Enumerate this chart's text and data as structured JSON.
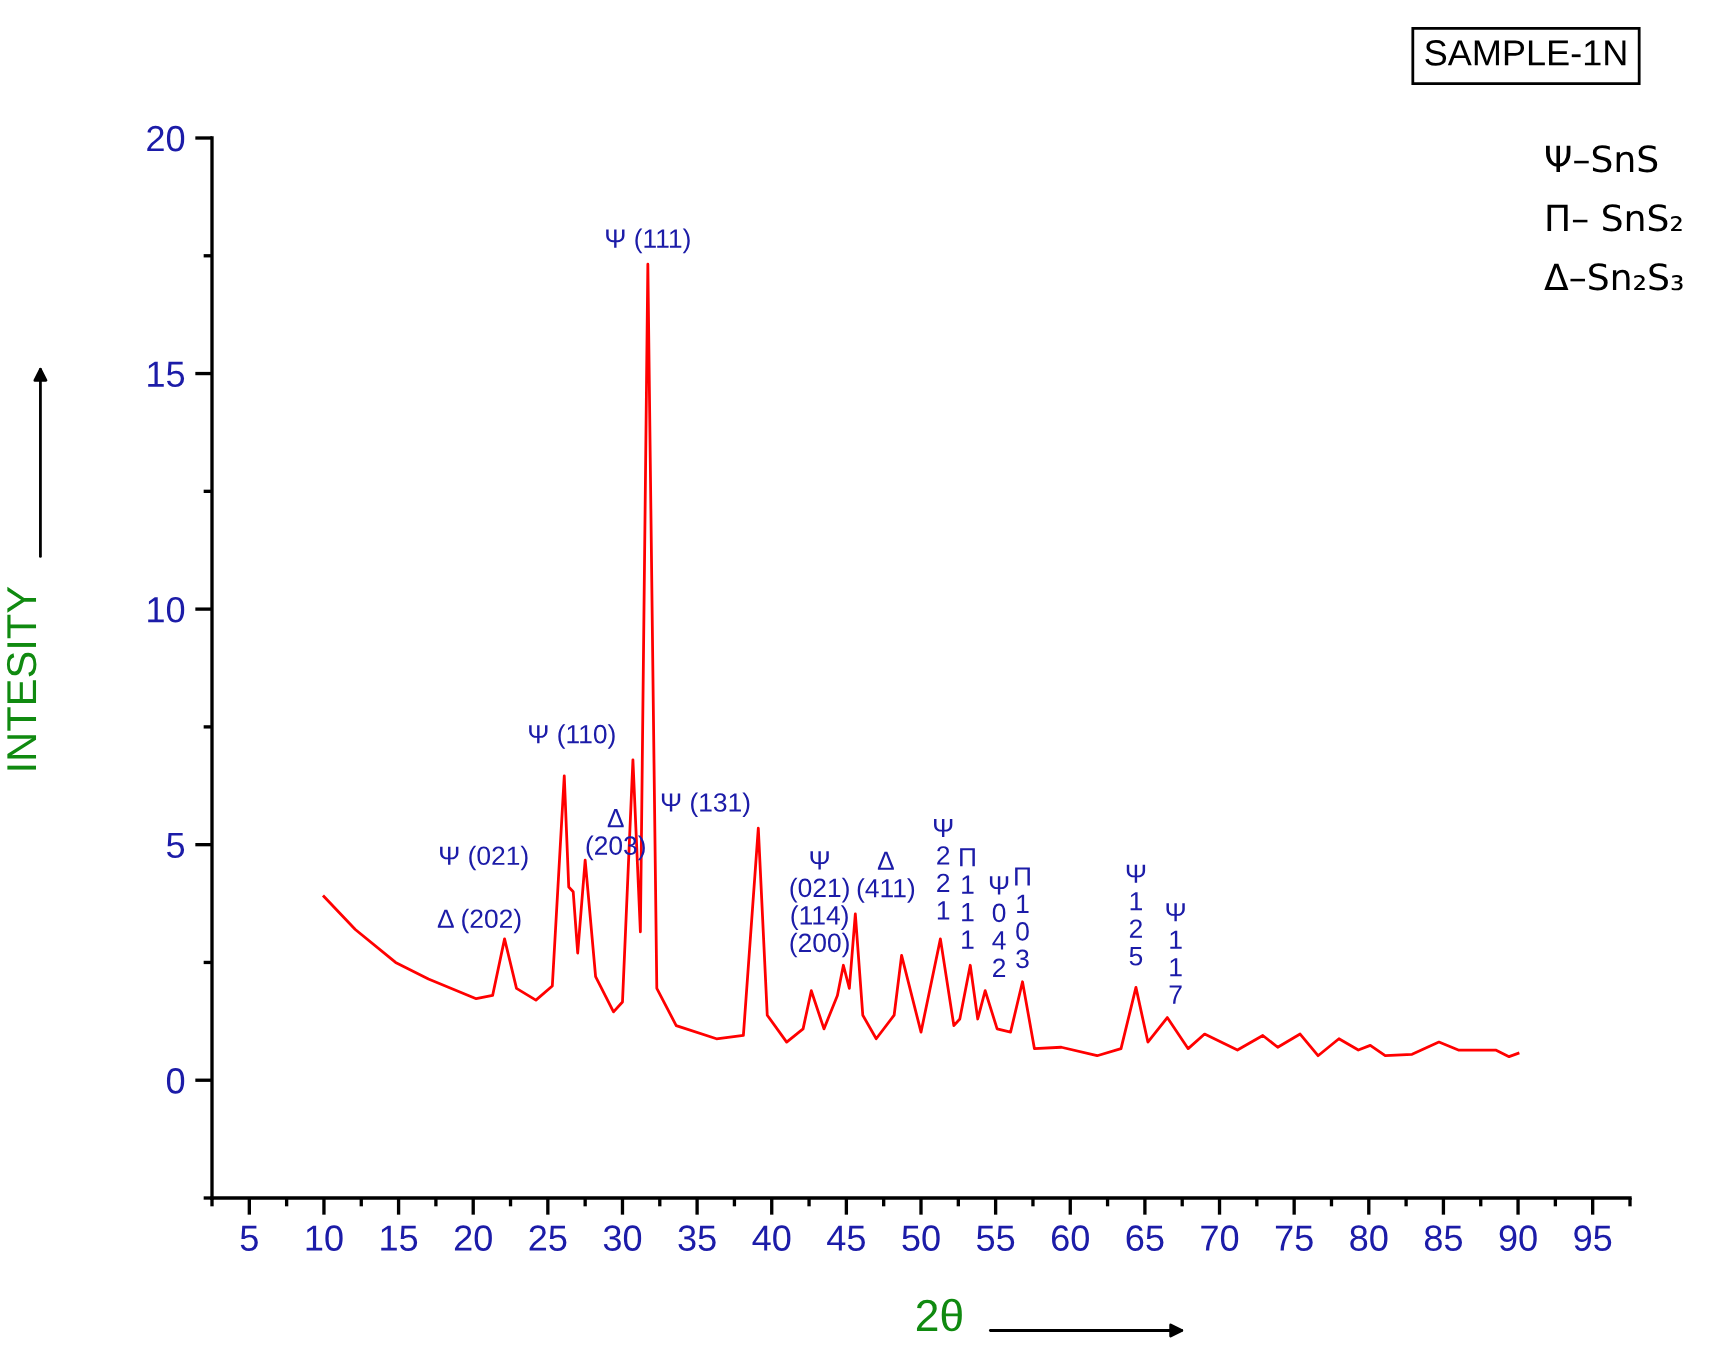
{
  "chart_data": {
    "type": "line",
    "title": "SAMPLE-1N",
    "xlabel": "2θ",
    "ylabel": "INTESITY",
    "x": [
      10,
      12.1,
      14.8,
      17.0,
      20.2,
      21.3,
      22.1,
      22.9,
      24.2,
      25.3,
      26.1,
      26.4,
      26.7,
      27.0,
      27.5,
      28.2,
      29.4,
      30.0,
      30.7,
      31.2,
      31.7,
      32.3,
      33.6,
      36.3,
      38.1,
      39.1,
      39.7,
      41.0,
      42.1,
      42.65,
      43.5,
      44.4,
      44.8,
      45.2,
      45.6,
      46.1,
      47.0,
      48.2,
      48.7,
      50.0,
      51.3,
      52.2,
      52.6,
      53.3,
      53.8,
      54.3,
      55.1,
      56.0,
      56.8,
      57.6,
      59.4,
      61.8,
      63.4,
      64.4,
      65.2,
      66.5,
      67.9,
      69.0,
      71.2,
      72.9,
      73.9,
      75.4,
      76.6,
      78.0,
      79.3,
      80.1,
      81.1,
      82.9,
      84.7,
      86.0,
      88.5,
      89.4,
      90
    ],
    "series": [
      {
        "color": "#ff0000",
        "values": [
          3.9,
          3.2,
          2.5,
          2.15,
          1.73,
          1.8,
          3.0,
          1.95,
          1.7,
          2.0,
          6.46,
          4.1,
          4.0,
          2.7,
          4.67,
          2.2,
          1.45,
          1.66,
          6.8,
          3.15,
          17.32,
          1.95,
          1.16,
          0.88,
          0.95,
          5.35,
          1.38,
          0.81,
          1.09,
          1.9,
          1.09,
          1.8,
          2.44,
          1.95,
          3.53,
          1.38,
          0.88,
          1.38,
          2.65,
          1.02,
          3.0,
          1.16,
          1.3,
          2.44,
          1.3,
          1.9,
          1.09,
          1.02,
          2.09,
          0.67,
          0.7,
          0.52,
          0.67,
          1.97,
          0.81,
          1.33,
          0.67,
          0.98,
          0.64,
          0.95,
          0.7,
          0.98,
          0.52,
          0.88,
          0.64,
          0.74,
          0.52,
          0.55,
          0.81,
          0.64,
          0.64,
          0.5,
          0.57
        ]
      }
    ],
    "xlim": [
      2.5,
      97.5
    ],
    "xticks": [
      5,
      10,
      15,
      20,
      25,
      30,
      35,
      40,
      45,
      50,
      55,
      60,
      65,
      70,
      75,
      80,
      85,
      90,
      95
    ],
    "ylim": [
      -2.5,
      20
    ],
    "yticks": [
      0,
      5,
      10,
      15,
      20
    ],
    "marker": "none",
    "line_style": "solid",
    "annotations": [
      {
        "text": "Δ (202)",
        "x": 22.1,
        "y": 3.0
      },
      {
        "text": "Ψ (021)",
        "x": 26.1,
        "y": 6.46
      },
      {
        "text": "Δ\n(203)",
        "x": 27.5,
        "y": 4.67
      },
      {
        "text": "Ψ (110)",
        "x": 30.7,
        "y": 6.8
      },
      {
        "text": "Ψ (111)",
        "x": 31.7,
        "y": 17.32
      },
      {
        "text": "Ψ (131)",
        "x": 39.1,
        "y": 5.35
      },
      {
        "text": "Ψ\n(021)\n(114)\n(200)",
        "x": 42.65,
        "y": 1.9
      },
      {
        "text": "Δ\n(411)",
        "x": 45.6,
        "y": 3.53
      },
      {
        "text": "Ψ\n2\n2\n1",
        "x": 51.3,
        "y": 3.0
      },
      {
        "text": "Π\n1\n1\n1",
        "x": 53.3,
        "y": 2.44
      },
      {
        "text": "Ψ\n0\n4\n2",
        "x": 54.3,
        "y": 1.9
      },
      {
        "text": "Π\n1\n0\n3",
        "x": 56.8,
        "y": 2.09
      },
      {
        "text": "Ψ\n1\n2\n5",
        "x": 64.4,
        "y": 1.97
      },
      {
        "text": "Ψ\n1\n1\n7",
        "x": 66.5,
        "y": 1.33
      },
      "Ψ–SnS",
      "Π– SnS₂",
      "Δ–Sn₂S₃"
    ]
  }
}
